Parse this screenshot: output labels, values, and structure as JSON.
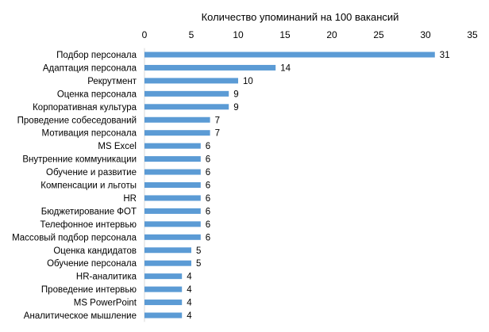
{
  "chart_data": {
    "type": "bar",
    "orientation": "horizontal",
    "title": "Количество упоминаний на 100 вакансий",
    "xlim": [
      0,
      35
    ],
    "x_ticks": [
      0,
      5,
      10,
      15,
      20,
      25,
      30,
      35
    ],
    "axis_position": "top",
    "grid": false,
    "bar_color": "#5b9bd5",
    "categories": [
      "Подбор персонала",
      "Адаптация персонала",
      "Рекрутмент",
      "Оценка персонала",
      "Корпоративная культура",
      "Проведение собеседований",
      "Мотивация персонала",
      "MS Excel",
      "Внутренние коммуникации",
      "Обучение и развитие",
      "Компенсации и льготы",
      "HR",
      "Бюджетирование ФОТ",
      "Телефонное интервью",
      "Массовый подбор персонала",
      "Оценка кандидатов",
      "Обучение персонала",
      "HR-аналитика",
      "Проведение интервью",
      "MS PowerPoint",
      "Аналитическое мышление"
    ],
    "values": [
      31,
      14,
      10,
      9,
      9,
      7,
      7,
      6,
      6,
      6,
      6,
      6,
      6,
      6,
      6,
      5,
      5,
      4,
      4,
      4,
      4
    ],
    "data_labels": [
      "31",
      "14",
      "10",
      "9",
      "9",
      "7",
      "7",
      "6",
      "6",
      "6",
      "6",
      "6",
      "6",
      "6",
      "6",
      "5",
      "5",
      "4",
      "4",
      "4",
      "4"
    ]
  }
}
